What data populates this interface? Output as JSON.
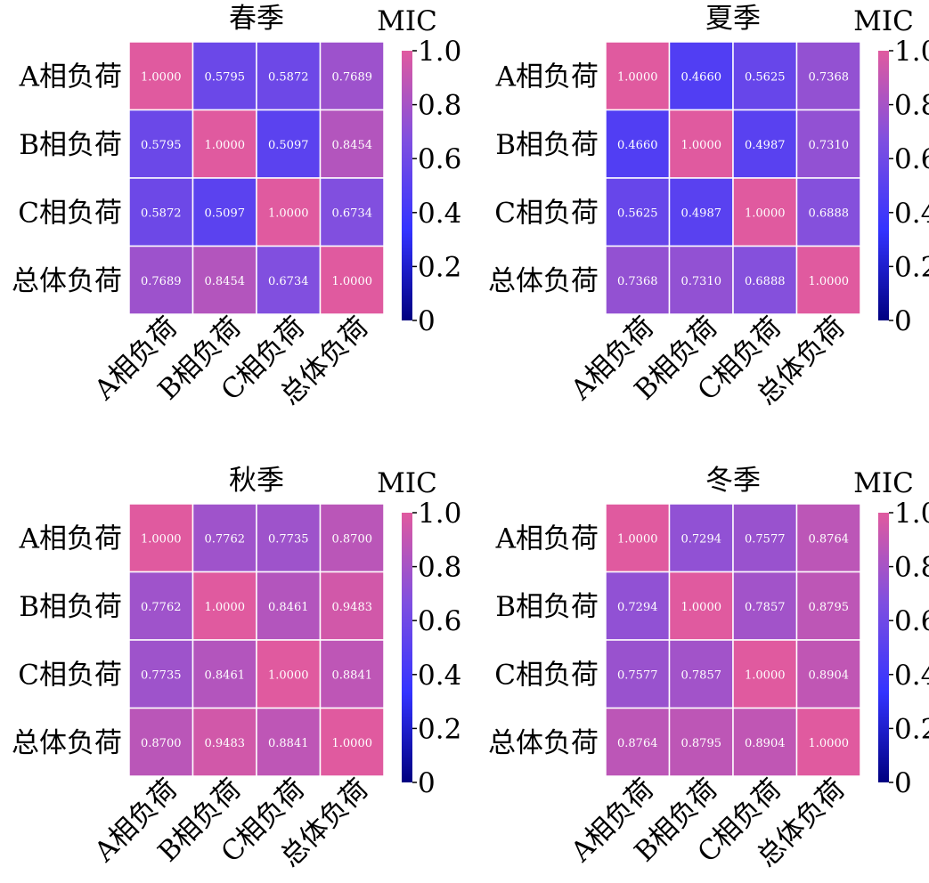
{
  "colorbar": {
    "label": "MIC",
    "ticks": [
      {
        "value": 1.0,
        "label": "1.0"
      },
      {
        "value": 0.8,
        "label": "0.8"
      },
      {
        "value": 0.6,
        "label": "0.6"
      },
      {
        "value": 0.4,
        "label": "0.4"
      },
      {
        "value": 0.2,
        "label": "0.2"
      },
      {
        "value": 0.0,
        "label": "0"
      }
    ],
    "range": [
      0,
      1
    ],
    "colors": [
      "#000080",
      "#3333ff",
      "#7f4fe0",
      "#e05a9f"
    ]
  },
  "chart_data": [
    {
      "type": "heatmap",
      "title": "春季",
      "rows": [
        "A相负荷",
        "B相负荷",
        "C相负荷",
        "总体负荷"
      ],
      "cols": [
        "A相负荷",
        "B相负荷",
        "C相负荷",
        "总体负荷"
      ],
      "values": [
        [
          1.0,
          0.5795,
          0.5872,
          0.7689
        ],
        [
          0.5795,
          1.0,
          0.5097,
          0.8454
        ],
        [
          0.5872,
          0.5097,
          1.0,
          0.6734
        ],
        [
          0.7689,
          0.8454,
          0.6734,
          1.0
        ]
      ],
      "labels": [
        [
          "1.0000",
          "0.5795",
          "0.5872",
          "0.7689"
        ],
        [
          "0.5795",
          "1.0000",
          "0.5097",
          "0.8454"
        ],
        [
          "0.5872",
          "0.5097",
          "1.0000",
          "0.6734"
        ],
        [
          "0.7689",
          "0.8454",
          "0.6734",
          "1.0000"
        ]
      ]
    },
    {
      "type": "heatmap",
      "title": "夏季",
      "rows": [
        "A相负荷",
        "B相负荷",
        "C相负荷",
        "总体负荷"
      ],
      "cols": [
        "A相负荷",
        "B相负荷",
        "C相负荷",
        "总体负荷"
      ],
      "values": [
        [
          1.0,
          0.466,
          0.5625,
          0.7368
        ],
        [
          0.466,
          1.0,
          0.4987,
          0.731
        ],
        [
          0.5625,
          0.4987,
          1.0,
          0.6888
        ],
        [
          0.7368,
          0.731,
          0.6888,
          1.0
        ]
      ],
      "labels": [
        [
          "1.0000",
          "0.4660",
          "0.5625",
          "0.7368"
        ],
        [
          "0.4660",
          "1.0000",
          "0.4987",
          "0.7310"
        ],
        [
          "0.5625",
          "0.4987",
          "1.0000",
          "0.6888"
        ],
        [
          "0.7368",
          "0.7310",
          "0.6888",
          "1.0000"
        ]
      ]
    },
    {
      "type": "heatmap",
      "title": "秋季",
      "rows": [
        "A相负荷",
        "B相负荷",
        "C相负荷",
        "总体负荷"
      ],
      "cols": [
        "A相负荷",
        "B相负荷",
        "C相负荷",
        "总体负荷"
      ],
      "values": [
        [
          1.0,
          0.7762,
          0.7735,
          0.87
        ],
        [
          0.7762,
          1.0,
          0.8461,
          0.9483
        ],
        [
          0.7735,
          0.8461,
          1.0,
          0.8841
        ],
        [
          0.87,
          0.9483,
          0.8841,
          1.0
        ]
      ],
      "labels": [
        [
          "1.0000",
          "0.7762",
          "0.7735",
          "0.8700"
        ],
        [
          "0.7762",
          "1.0000",
          "0.8461",
          "0.9483"
        ],
        [
          "0.7735",
          "0.8461",
          "1.0000",
          "0.8841"
        ],
        [
          "0.8700",
          "0.9483",
          "0.8841",
          "1.0000"
        ]
      ]
    },
    {
      "type": "heatmap",
      "title": "冬季",
      "rows": [
        "A相负荷",
        "B相负荷",
        "C相负荷",
        "总体负荷"
      ],
      "cols": [
        "A相负荷",
        "B相负荷",
        "C相负荷",
        "总体负荷"
      ],
      "values": [
        [
          1.0,
          0.7294,
          0.7577,
          0.8764
        ],
        [
          0.7294,
          1.0,
          0.7857,
          0.8795
        ],
        [
          0.7577,
          0.7857,
          1.0,
          0.8904
        ],
        [
          0.8764,
          0.8795,
          0.8904,
          1.0
        ]
      ],
      "labels": [
        [
          "1.0000",
          "0.7294",
          "0.7577",
          "0.8764"
        ],
        [
          "0.7294",
          "1.0000",
          "0.7857",
          "0.8795"
        ],
        [
          "0.7577",
          "0.7857",
          "1.0000",
          "0.8904"
        ],
        [
          "0.8764",
          "0.8795",
          "0.8904",
          "1.0000"
        ]
      ]
    }
  ]
}
